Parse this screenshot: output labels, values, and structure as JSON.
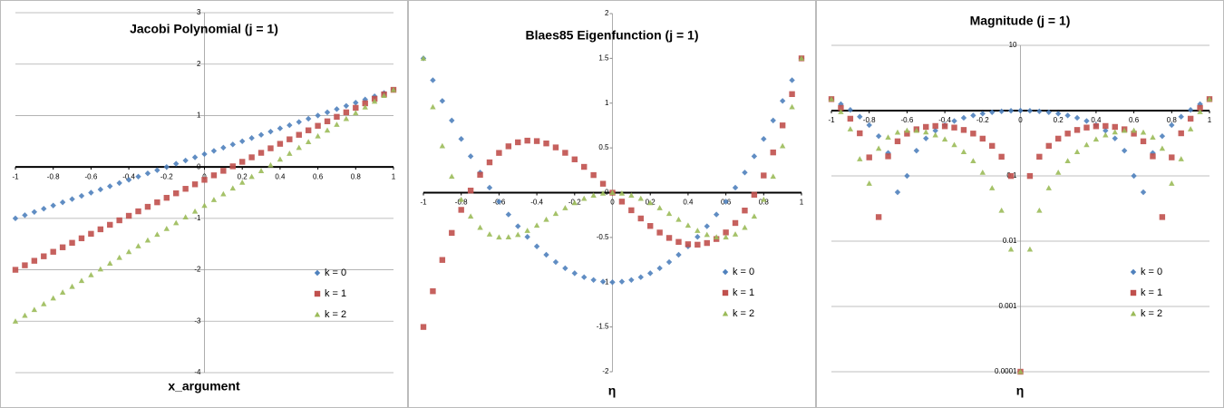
{
  "chart_data": [
    {
      "type": "scatter",
      "title": "Jacobi Polynomial (j = 1)",
      "x_label": "x_argument",
      "grid": true,
      "log_y": false,
      "legend": "lower right",
      "xlim": [
        -1,
        1
      ],
      "xticks": [
        -1,
        -0.8,
        -0.6,
        -0.4,
        -0.2,
        0,
        0.2,
        0.4,
        0.6,
        0.8,
        1
      ],
      "ylim": [
        -4,
        3
      ],
      "yticks": [
        -4,
        -3,
        -2,
        -1,
        0,
        1,
        2,
        3
      ],
      "x": [
        -1,
        -0.95,
        -0.9,
        -0.85,
        -0.8,
        -0.75,
        -0.7,
        -0.65,
        -0.6,
        -0.55,
        -0.5,
        -0.45,
        -0.4,
        -0.35,
        -0.3,
        -0.25,
        -0.2,
        -0.15,
        -0.1,
        -0.05,
        0,
        0.05,
        0.1,
        0.15,
        0.2,
        0.25,
        0.3,
        0.35,
        0.4,
        0.45,
        0.5,
        0.55,
        0.6,
        0.65,
        0.7,
        0.75,
        0.8,
        0.85,
        0.9,
        0.95,
        1
      ],
      "series": [
        {
          "name": "k = 0",
          "color": "#4f81bd",
          "marker": "diamond",
          "values": [
            -1,
            -0.9375,
            -0.875,
            -0.8125,
            -0.75,
            -0.6875,
            -0.625,
            -0.5625,
            -0.5,
            -0.4375,
            -0.375,
            -0.3125,
            -0.25,
            -0.1875,
            -0.125,
            -0.0625,
            0,
            0.0625,
            0.125,
            0.1875,
            0.25,
            0.3125,
            0.375,
            0.4375,
            0.5,
            0.5625,
            0.625,
            0.6875,
            0.75,
            0.8125,
            0.875,
            0.9375,
            1,
            1.0625,
            1.125,
            1.1875,
            1.25,
            1.3125,
            1.375,
            1.4375,
            1.5
          ]
        },
        {
          "name": "k = 1",
          "color": "#c0504d",
          "marker": "square",
          "values": [
            -2,
            -1.9125,
            -1.825,
            -1.7375,
            -1.65,
            -1.5625,
            -1.475,
            -1.3875,
            -1.3,
            -1.2125,
            -1.125,
            -1.0375,
            -0.95,
            -0.8625,
            -0.775,
            -0.6875,
            -0.6,
            -0.5125,
            -0.425,
            -0.3375,
            -0.25,
            -0.1625,
            -0.075,
            0.0125,
            0.1,
            0.1875,
            0.275,
            0.3625,
            0.45,
            0.5375,
            0.625,
            0.7125,
            0.8,
            0.8875,
            0.975,
            1.0625,
            1.15,
            1.2375,
            1.325,
            1.4125,
            1.5
          ]
        },
        {
          "name": "k = 2",
          "color": "#9bbb59",
          "marker": "triangle",
          "values": [
            -3,
            -2.8875,
            -2.775,
            -2.6625,
            -2.55,
            -2.4375,
            -2.325,
            -2.2125,
            -2.1,
            -1.9875,
            -1.875,
            -1.7625,
            -1.65,
            -1.5375,
            -1.425,
            -1.3125,
            -1.2,
            -1.0875,
            -0.975,
            -0.8625,
            -0.75,
            -0.6375,
            -0.525,
            -0.4125,
            -0.3,
            -0.1875,
            -0.075,
            0.0375,
            0.15,
            0.2625,
            0.375,
            0.4875,
            0.6,
            0.7125,
            0.825,
            0.9375,
            1.05,
            1.1625,
            1.275,
            1.3875,
            1.5
          ]
        }
      ]
    },
    {
      "type": "scatter",
      "title": "Blaes85 Eigenfunction (j = 1)",
      "x_label": "η",
      "grid": false,
      "log_y": false,
      "legend": "lower right",
      "xlim": [
        -1,
        1
      ],
      "xticks": [
        -1,
        -0.8,
        -0.6,
        -0.4,
        -0.2,
        0,
        0.2,
        0.4,
        0.6,
        0.8,
        1
      ],
      "ylim": [
        -2,
        2
      ],
      "yticks": [
        -2,
        -1.5,
        -1,
        -0.5,
        0,
        0.5,
        1,
        1.5,
        2
      ],
      "x": [
        -1,
        -0.95,
        -0.9,
        -0.85,
        -0.8,
        -0.75,
        -0.7,
        -0.65,
        -0.6,
        -0.55,
        -0.5,
        -0.45,
        -0.4,
        -0.35,
        -0.3,
        -0.25,
        -0.2,
        -0.15,
        -0.1,
        -0.05,
        0,
        0.05,
        0.1,
        0.15,
        0.2,
        0.25,
        0.3,
        0.35,
        0.4,
        0.45,
        0.5,
        0.55,
        0.6,
        0.65,
        0.7,
        0.75,
        0.8,
        0.85,
        0.9,
        0.95,
        1
      ],
      "series": [
        {
          "name": "k = 0",
          "color": "#4f81bd",
          "marker": "diamond",
          "values": [
            1.5,
            1.25625,
            1.025,
            0.80625,
            0.6,
            0.40625,
            0.225,
            0.05625,
            -0.1,
            -0.24375,
            -0.375,
            -0.49375,
            -0.6,
            -0.69375,
            -0.775,
            -0.84375,
            -0.9,
            -0.94375,
            -0.975,
            -0.99375,
            -1,
            -0.99375,
            -0.975,
            -0.94375,
            -0.9,
            -0.84375,
            -0.775,
            -0.69375,
            -0.6,
            -0.49375,
            -0.375,
            -0.24375,
            -0.1,
            0.05625,
            0.225,
            0.40625,
            0.6,
            0.80625,
            1.025,
            1.25625,
            1.5
          ]
        },
        {
          "name": "k = 1",
          "color": "#c0504d",
          "marker": "square",
          "values": [
            -1.5,
            -1.1008,
            -0.7515,
            -0.4494,
            -0.192,
            0.0234,
            0.1995,
            0.3388,
            0.444,
            0.5177,
            0.5625,
            0.5811,
            0.576,
            0.5499,
            0.5055,
            0.4453,
            0.372,
            0.2882,
            0.1965,
            0.0996,
            0,
            -0.0996,
            -0.1965,
            -0.2882,
            -0.372,
            -0.4453,
            -0.5055,
            -0.5499,
            -0.576,
            -0.5811,
            -0.5625,
            -0.5177,
            -0.444,
            -0.3388,
            -0.1995,
            -0.0234,
            0.192,
            0.4494,
            0.7515,
            1.1008,
            1.5
          ]
        },
        {
          "name": "k = 2",
          "color": "#9bbb59",
          "marker": "triangle",
          "values": [
            1.5,
            0.9578,
            0.5225,
            0.1815,
            -0.0768,
            -0.2637,
            -0.3896,
            -0.4642,
            -0.4968,
            -0.4957,
            -0.4688,
            -0.423,
            -0.3648,
            -0.3,
            -0.2336,
            -0.1699,
            -0.1128,
            -0.0652,
            -0.0296,
            -0.0075,
            0,
            -0.0075,
            -0.0296,
            -0.0652,
            -0.1128,
            -0.1699,
            -0.2336,
            -0.3,
            -0.3648,
            -0.423,
            -0.4688,
            -0.4957,
            -0.4968,
            -0.4642,
            -0.3896,
            -0.2637,
            -0.0768,
            0.1815,
            0.5225,
            0.9578,
            1.5
          ]
        }
      ]
    },
    {
      "type": "scatter",
      "title": "Magnitude (j = 1)",
      "x_label": "η",
      "grid": true,
      "log_y": true,
      "legend": "lower right",
      "xlim": [
        -1,
        1
      ],
      "xticks": [
        -1,
        -0.8,
        -0.6,
        -0.4,
        -0.2,
        0,
        0.2,
        0.4,
        0.6,
        0.8,
        1
      ],
      "ylim": [
        0.0001,
        10
      ],
      "yticks": [
        0.0001,
        0.001,
        0.01,
        0.1,
        10
      ],
      "x": [
        -1,
        -0.95,
        -0.9,
        -0.85,
        -0.8,
        -0.75,
        -0.7,
        -0.65,
        -0.6,
        -0.55,
        -0.5,
        -0.45,
        -0.4,
        -0.35,
        -0.3,
        -0.25,
        -0.2,
        -0.15,
        -0.1,
        -0.05,
        0,
        0.05,
        0.1,
        0.15,
        0.2,
        0.25,
        0.3,
        0.35,
        0.4,
        0.45,
        0.5,
        0.55,
        0.6,
        0.65,
        0.7,
        0.75,
        0.8,
        0.85,
        0.9,
        0.95,
        1
      ],
      "series": [
        {
          "name": "k = 0",
          "color": "#4f81bd",
          "marker": "diamond",
          "values": [
            1.5,
            1.25625,
            1.025,
            0.80625,
            0.6,
            0.40625,
            0.225,
            0.05625,
            0.1,
            0.24375,
            0.375,
            0.49375,
            0.6,
            0.69375,
            0.775,
            0.84375,
            0.9,
            0.94375,
            0.975,
            0.99375,
            1,
            0.99375,
            0.975,
            0.94375,
            0.9,
            0.84375,
            0.775,
            0.69375,
            0.6,
            0.49375,
            0.375,
            0.24375,
            0.1,
            0.05625,
            0.225,
            0.40625,
            0.6,
            0.80625,
            1.025,
            1.25625,
            1.5
          ]
        },
        {
          "name": "k = 1",
          "color": "#c0504d",
          "marker": "square",
          "values": [
            1.5,
            1.1008,
            0.7515,
            0.4494,
            0.192,
            0.0234,
            0.1995,
            0.3388,
            0.444,
            0.5177,
            0.5625,
            0.5811,
            0.576,
            0.5499,
            0.5055,
            0.4453,
            0.372,
            0.2882,
            0.1965,
            0.0996,
            0.0001,
            0.0996,
            0.1965,
            0.2882,
            0.372,
            0.4453,
            0.5055,
            0.5499,
            0.576,
            0.5811,
            0.5625,
            0.5177,
            0.444,
            0.3388,
            0.1995,
            0.0234,
            0.192,
            0.4494,
            0.7515,
            1.1008,
            1.5
          ]
        },
        {
          "name": "k = 2",
          "color": "#9bbb59",
          "marker": "triangle",
          "values": [
            1.5,
            0.9578,
            0.5225,
            0.1815,
            0.0768,
            0.2637,
            0.3896,
            0.4642,
            0.4968,
            0.4957,
            0.4688,
            0.423,
            0.3648,
            0.3,
            0.2336,
            0.1699,
            0.1128,
            0.0652,
            0.0296,
            0.0075,
            0.0001,
            0.0075,
            0.0296,
            0.0652,
            0.1128,
            0.1699,
            0.2336,
            0.3,
            0.3648,
            0.423,
            0.4688,
            0.4957,
            0.4968,
            0.4642,
            0.3896,
            0.2637,
            0.0768,
            0.1815,
            0.5225,
            0.9578,
            1.5
          ]
        }
      ]
    }
  ]
}
